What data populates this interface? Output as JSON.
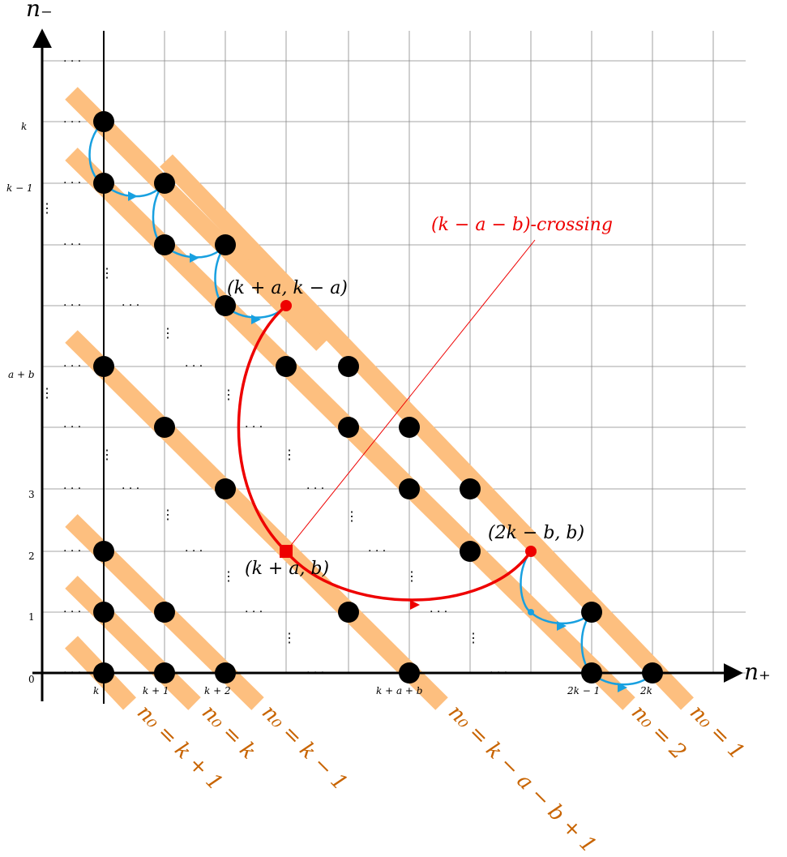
{
  "axes": {
    "x_title": "n₊",
    "y_title": "n₋"
  },
  "y_ticks": [
    "k",
    "k − 1",
    "a + b",
    "3",
    "2",
    "1",
    "0"
  ],
  "x_ticks": [
    "k",
    "k + 1",
    "k + 2",
    "k + a + b",
    "2k − 1",
    "2k"
  ],
  "point_labels": {
    "crossing_start": "(k + a, k − a)",
    "crossing_mid": "(k + a, b)",
    "crossing_end": "(2k − b, b)"
  },
  "crossing_label": "(k − a − b)-crossing",
  "diagonal_labels": [
    "n₀ = k + 1",
    "n₀ = k",
    "n₀ = k − 1",
    "n₀ = k − a − b + 1",
    "n₀ = 2",
    "n₀ = 1"
  ],
  "dots": {
    "hdots": "· · ·",
    "vdots": "⋮"
  },
  "colors": {
    "band": "#fdbf7f",
    "arrow_blue": "#18a0e0",
    "crossing_red": "#ee0000",
    "diag_label": "#c86400",
    "grid": "#888888"
  }
}
